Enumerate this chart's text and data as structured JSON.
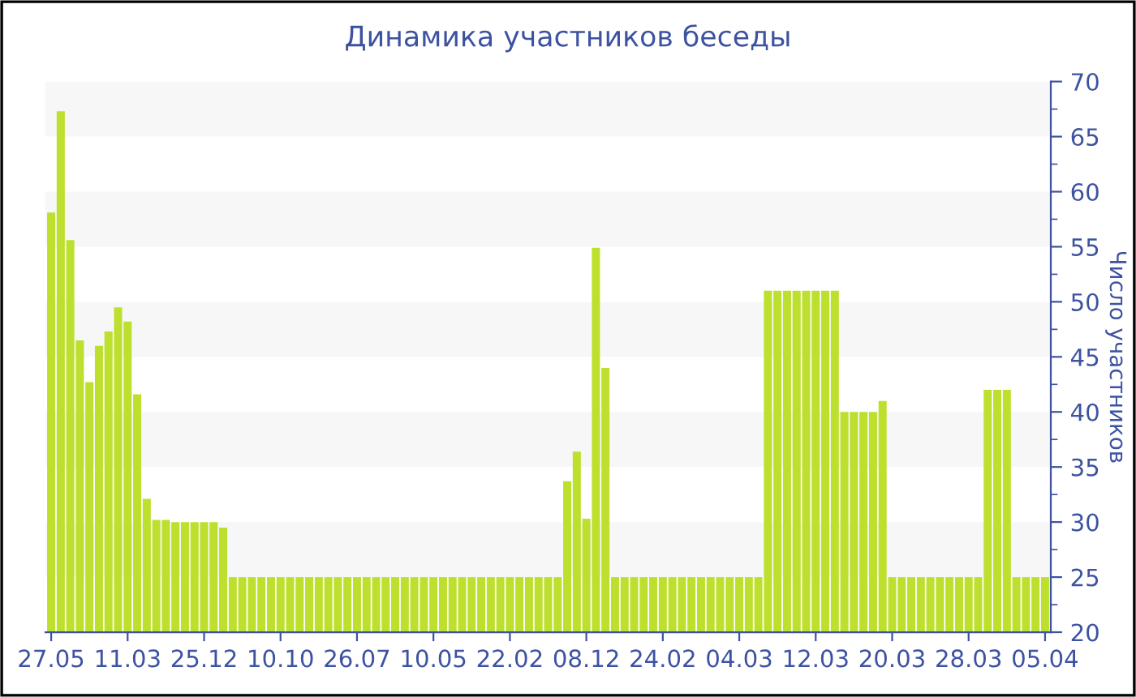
{
  "chart_data": {
    "type": "bar",
    "title": "Динамика участников беседы",
    "ylabel": "Число участников",
    "categories": [
      "27.05",
      null,
      null,
      null,
      null,
      null,
      null,
      null,
      "11.03",
      null,
      null,
      null,
      null,
      null,
      null,
      null,
      "25.12",
      null,
      null,
      null,
      null,
      null,
      null,
      null,
      "10.10",
      null,
      null,
      null,
      null,
      null,
      null,
      null,
      "26.07",
      null,
      null,
      null,
      null,
      null,
      null,
      null,
      "10.05",
      null,
      null,
      null,
      null,
      null,
      null,
      null,
      "22.02",
      null,
      null,
      null,
      null,
      null,
      null,
      null,
      "08.12",
      null,
      null,
      null,
      null,
      null,
      null,
      null,
      "24.02",
      null,
      null,
      null,
      null,
      null,
      null,
      null,
      "04.03",
      null,
      null,
      null,
      null,
      null,
      null,
      null,
      "12.03",
      null,
      null,
      null,
      null,
      null,
      null,
      null,
      "20.03",
      null,
      null,
      null,
      null,
      null,
      null,
      null,
      "28.03",
      null,
      null,
      null,
      null,
      null,
      null,
      null,
      "05.04"
    ],
    "values": [
      58.1,
      67.3,
      55.6,
      46.5,
      42.7,
      46.0,
      47.3,
      49.5,
      48.2,
      41.6,
      32.1,
      30.2,
      30.2,
      30.0,
      30.0,
      30.0,
      30.0,
      30.0,
      29.5,
      25,
      25,
      25,
      25,
      25,
      25,
      25,
      25,
      25,
      25,
      25,
      25,
      25,
      25,
      25,
      25,
      25,
      25,
      25,
      25,
      25,
      25,
      25,
      25,
      25,
      25,
      25,
      25,
      25,
      25,
      25,
      25,
      25,
      25,
      25,
      33.7,
      36.4,
      30.3,
      54.9,
      44.0,
      25,
      25,
      25,
      25,
      25,
      25,
      25,
      25,
      25,
      25,
      25,
      25,
      25,
      25,
      25,
      25,
      51,
      51,
      51,
      51,
      51,
      51,
      51,
      51,
      40,
      40,
      40,
      40,
      41,
      25,
      25,
      25,
      25,
      25,
      25,
      25,
      25,
      25,
      25,
      42,
      42,
      42,
      25,
      25,
      25,
      25
    ],
    "color": "#bde02e",
    "ylim": [
      20,
      70
    ],
    "yticks": [
      20,
      {
        "value": 22.5,
        "label": null
      },
      25,
      {
        "value": 27.5,
        "label": null
      },
      30,
      {
        "value": 32.5,
        "label": null
      },
      35,
      {
        "value": 37.5,
        "label": null
      },
      40,
      {
        "value": 42.5,
        "label": null
      },
      45,
      {
        "value": 47.5,
        "label": null
      },
      50,
      {
        "value": 52.5,
        "label": null
      },
      55,
      {
        "value": 57.5,
        "label": null
      },
      60,
      {
        "value": 62.5,
        "label": null
      },
      65,
      {
        "value": 67.5,
        "label": null
      },
      70
    ],
    "bands": [
      {
        "axis": "y",
        "from": 25,
        "to": 30,
        "color": "#f7f7f7"
      },
      {
        "axis": "y",
        "from": 35,
        "to": 40,
        "color": "#f7f7f7"
      },
      {
        "axis": "y",
        "from": 45,
        "to": 50,
        "color": "#f7f7f7"
      },
      {
        "axis": "y",
        "from": 55,
        "to": 60,
        "color": "#f7f7f7"
      },
      {
        "axis": "y",
        "from": 65,
        "to": 70,
        "color": "#f7f7f7"
      }
    ],
    "grid": false,
    "legend": false
  }
}
